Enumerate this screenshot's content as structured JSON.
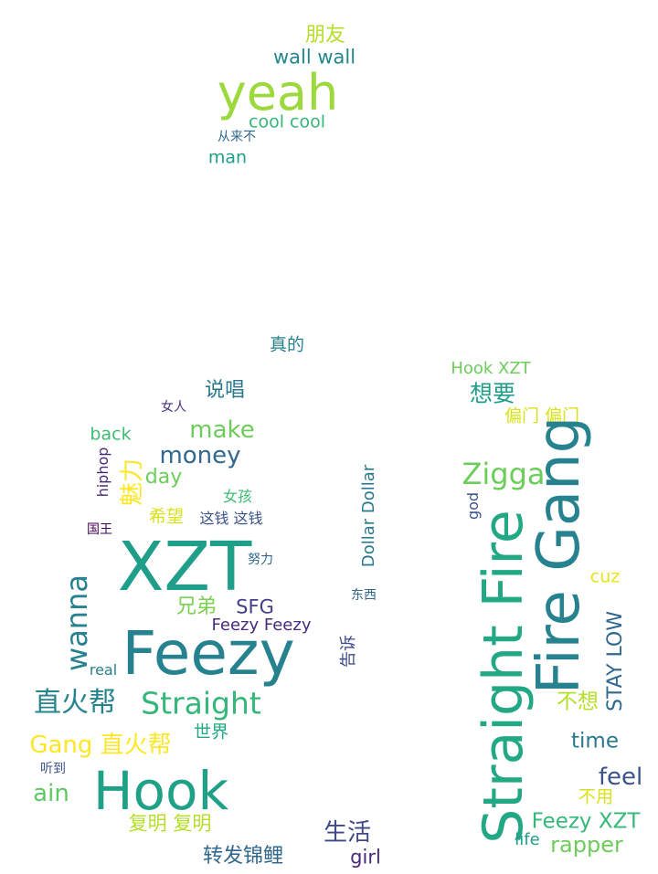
{
  "words": [
    {
      "id": "yeah",
      "text": "yeah",
      "color": "#9bd93c"
    },
    {
      "id": "peng-you",
      "text": "朋友",
      "color": "#b5de2b"
    },
    {
      "id": "wall-wall",
      "text": "wall wall",
      "color": "#24868e"
    },
    {
      "id": "cool-cool",
      "text": "cool cool",
      "color": "#35b779"
    },
    {
      "id": "cong-lai-bu",
      "text": "从来不",
      "color": "#31688e"
    },
    {
      "id": "man",
      "text": "man",
      "color": "#1f9e89"
    },
    {
      "id": "zhen-de",
      "text": "真的",
      "color": "#26828e"
    },
    {
      "id": "hook-xzt-top",
      "text": "Hook XZT",
      "color": "#6ccd5a"
    },
    {
      "id": "xiang-yao",
      "text": "想要",
      "color": "#1f9e89"
    },
    {
      "id": "pian-men",
      "text": "偏门 偏门",
      "color": "#d8e219"
    },
    {
      "id": "shuo-chang",
      "text": "说唱",
      "color": "#2a788e"
    },
    {
      "id": "nv-ren",
      "text": "女人",
      "color": "#46337e"
    },
    {
      "id": "make",
      "text": "make",
      "color": "#6ccd5a"
    },
    {
      "id": "back",
      "text": "back",
      "color": "#3fbc73"
    },
    {
      "id": "money",
      "text": "money",
      "color": "#31688e"
    },
    {
      "id": "hiphop",
      "text": "hiphop",
      "color": "#482878"
    },
    {
      "id": "mei-li",
      "text": "魅力",
      "color": "#fde725"
    },
    {
      "id": "day",
      "text": "day",
      "color": "#6ccd5a"
    },
    {
      "id": "nv-hai",
      "text": "女孩",
      "color": "#3fbc73"
    },
    {
      "id": "xi-wang",
      "text": "希望",
      "color": "#d8e219"
    },
    {
      "id": "zhe-qian",
      "text": "这钱 这钱",
      "color": "#3b528b"
    },
    {
      "id": "guo-wang",
      "text": "国王",
      "color": "#440154"
    },
    {
      "id": "xzt",
      "text": "XZT",
      "color": "#1f9e89"
    },
    {
      "id": "nu-li",
      "text": "努力",
      "color": "#31688e"
    },
    {
      "id": "dollar-dollar",
      "text": "Dollar Dollar",
      "color": "#2a788e"
    },
    {
      "id": "dong-xi",
      "text": "东西",
      "color": "#31688e"
    },
    {
      "id": "wanna",
      "text": "wanna",
      "color": "#26828e"
    },
    {
      "id": "xiong-di",
      "text": "兄弟",
      "color": "#7ad151"
    },
    {
      "id": "sfg",
      "text": "SFG",
      "color": "#433e85"
    },
    {
      "id": "feezy-feezy",
      "text": "Feezy Feezy",
      "color": "#472d7b"
    },
    {
      "id": "feezy",
      "text": "Feezy",
      "color": "#26828e"
    },
    {
      "id": "real",
      "text": "real",
      "color": "#27808e"
    },
    {
      "id": "gao-su",
      "text": "告诉",
      "color": "#3e4989"
    },
    {
      "id": "zhi-huo-bang-1",
      "text": "直火帮",
      "color": "#25848e"
    },
    {
      "id": "straight",
      "text": "Straight",
      "color": "#35b779"
    },
    {
      "id": "shi-jie",
      "text": "世界",
      "color": "#22a884"
    },
    {
      "id": "gang-zhi-huo-bang",
      "text": "Gang 直火帮",
      "color": "#fde725"
    },
    {
      "id": "ting-dao",
      "text": "听到",
      "color": "#3b528b"
    },
    {
      "id": "ain",
      "text": "ain",
      "color": "#5ec962"
    },
    {
      "id": "hook",
      "text": "Hook",
      "color": "#1fa187"
    },
    {
      "id": "fu-ming",
      "text": "复明 复明",
      "color": "#b5de2b"
    },
    {
      "id": "sheng-huo",
      "text": "生活",
      "color": "#3e4989"
    },
    {
      "id": "zhuan-fa-jin-li",
      "text": "转发锦鲤",
      "color": "#31688e"
    },
    {
      "id": "girl",
      "text": "girl",
      "color": "#482878"
    },
    {
      "id": "zigga",
      "text": "Zigga",
      "color": "#6ccd5a"
    },
    {
      "id": "god",
      "text": "god",
      "color": "#3b528b"
    },
    {
      "id": "straight-fire",
      "text": "Straight Fire",
      "color": "#22a884"
    },
    {
      "id": "fire-gang",
      "text": "Fire Gang",
      "color": "#26828e"
    },
    {
      "id": "cuz",
      "text": "cuz",
      "color": "#e5e419"
    },
    {
      "id": "stay-low",
      "text": "STAY LOW",
      "color": "#31688e"
    },
    {
      "id": "bu-xiang",
      "text": "不想",
      "color": "#b5de2b"
    },
    {
      "id": "time",
      "text": "time",
      "color": "#2a788e"
    },
    {
      "id": "feel",
      "text": "feel",
      "color": "#3b528b"
    },
    {
      "id": "bu-yong",
      "text": "不用",
      "color": "#d8e219"
    },
    {
      "id": "feezy-xzt",
      "text": "Feezy XZT",
      "color": "#35b779"
    },
    {
      "id": "life",
      "text": "life",
      "color": "#1f9e89"
    },
    {
      "id": "rapper",
      "text": "rapper",
      "color": "#6ccd5a"
    }
  ]
}
